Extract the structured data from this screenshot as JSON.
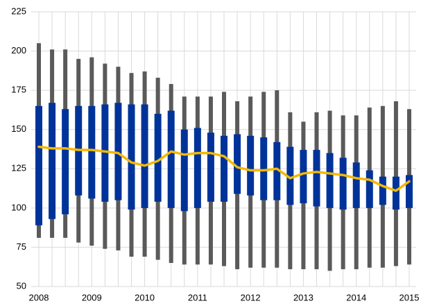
{
  "chart_data": {
    "type": "range",
    "categories": [
      "2008",
      null,
      null,
      null,
      "2009",
      null,
      null,
      null,
      "2010",
      null,
      null,
      null,
      "2011",
      null,
      null,
      null,
      "2012",
      null,
      null,
      null,
      "2013",
      null,
      null,
      null,
      "2014",
      null,
      null,
      null,
      "2015"
    ],
    "whisker_high": [
      205,
      201,
      201,
      195,
      196,
      192,
      190,
      186,
      187,
      183,
      179,
      171,
      171,
      171,
      174,
      168,
      171,
      174,
      175,
      161,
      155,
      161,
      162,
      159,
      159,
      164,
      165,
      168,
      163
    ],
    "whisker_low": [
      81,
      81,
      81,
      78,
      76,
      74,
      73,
      69,
      69,
      67,
      65,
      64,
      64,
      64,
      63,
      61,
      62,
      62,
      62,
      61,
      61,
      61,
      60,
      61,
      61,
      62,
      62,
      63,
      64
    ],
    "box_high": [
      165,
      167,
      163,
      165,
      165,
      166,
      167,
      166,
      166,
      160,
      162,
      150,
      151,
      148,
      146,
      147,
      146,
      145,
      142,
      139,
      137,
      137,
      135,
      132,
      129,
      124,
      120,
      120,
      121
    ],
    "box_low": [
      89,
      93,
      96,
      108,
      106,
      104,
      105,
      99,
      100,
      104,
      100,
      98,
      100,
      104,
      104,
      109,
      108,
      105,
      105,
      102,
      103,
      101,
      100,
      99,
      100,
      100,
      102,
      99,
      100
    ],
    "line": [
      139,
      138,
      138,
      137,
      137,
      136,
      135,
      129,
      127,
      130,
      136,
      134,
      135,
      135,
      133,
      126,
      124,
      124,
      125,
      119,
      122,
      123,
      122,
      121,
      119,
      118,
      114,
      111,
      117
    ],
    "whisker_color": "#5a5a5a",
    "box_color": "#003399",
    "line_color": "#f5b800",
    "ylim": [
      50,
      225
    ],
    "yticks": [
      50,
      75,
      100,
      125,
      150,
      175,
      200,
      225
    ],
    "grid": true
  }
}
